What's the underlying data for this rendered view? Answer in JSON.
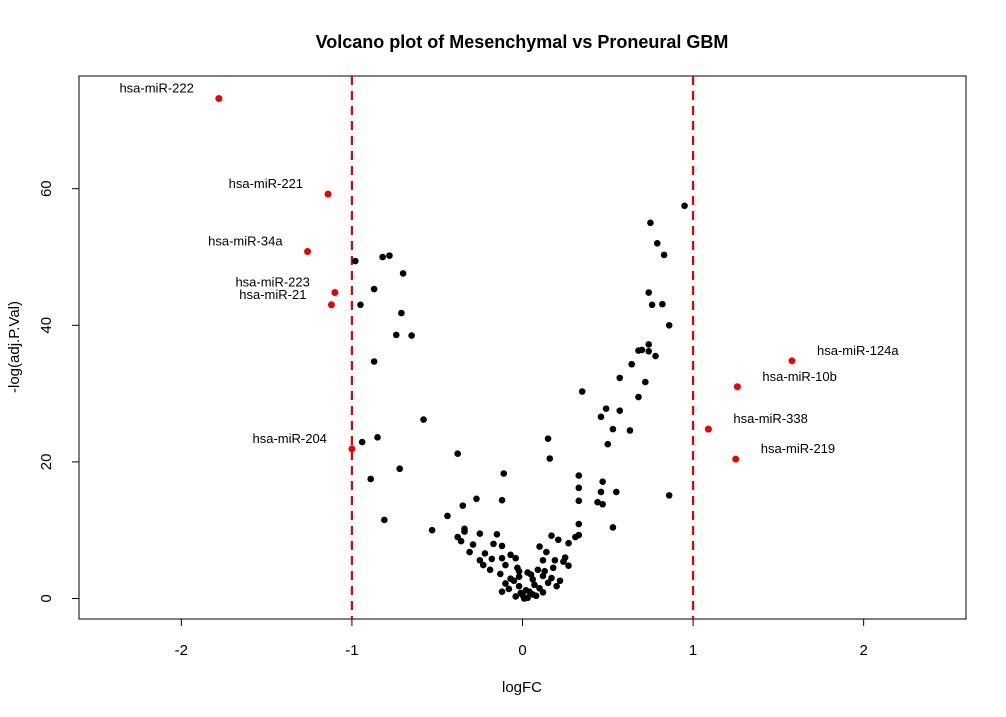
{
  "chart_data": {
    "type": "scatter",
    "title": "Volcano plot of Mesenchymal vs Proneural GBM",
    "xlabel": "logFC",
    "ylabel": "-log(adj.P.Val)",
    "xlim": [
      -2.6,
      2.6
    ],
    "ylim": [
      -3.0,
      76.5
    ],
    "xticks": [
      -2,
      -1,
      0,
      1,
      2
    ],
    "yticks": [
      0,
      20,
      40,
      60
    ],
    "grid": false,
    "thresholds": {
      "logFC": [
        -1,
        1
      ],
      "color": "#e00000",
      "style": "dashed"
    },
    "colors": {
      "significant": "#ee0000",
      "other": "#000000",
      "threshold": "#e00000"
    },
    "labeled_points": [
      {
        "label": "hsa-miR-222",
        "x": -1.78,
        "y": 73.2,
        "side": "left"
      },
      {
        "label": "hsa-miR-221",
        "x": -1.14,
        "y": 59.2,
        "side": "left"
      },
      {
        "label": "hsa-miR-34a",
        "x": -1.26,
        "y": 50.8,
        "side": "left"
      },
      {
        "label": "hsa-miR-223",
        "x": -1.1,
        "y": 44.8,
        "side": "left"
      },
      {
        "label": "hsa-miR-21",
        "x": -1.12,
        "y": 43.0,
        "side": "left"
      },
      {
        "label": "hsa-miR-204",
        "x": -1.0,
        "y": 21.9,
        "side": "left"
      },
      {
        "label": "hsa-miR-124a",
        "x": 1.58,
        "y": 34.8,
        "side": "right"
      },
      {
        "label": "hsa-miR-10b",
        "x": 1.26,
        "y": 31.0,
        "side": "right"
      },
      {
        "label": "hsa-miR-338",
        "x": 1.09,
        "y": 24.8,
        "side": "right"
      },
      {
        "label": "hsa-miR-219",
        "x": 1.25,
        "y": 20.4,
        "side": "right"
      }
    ],
    "points": [
      [
        0.95,
        57.5
      ],
      [
        0.75,
        55.0
      ],
      [
        0.79,
        52.0
      ],
      [
        0.83,
        50.3
      ],
      [
        0.74,
        44.8
      ],
      [
        0.76,
        43.0
      ],
      [
        0.82,
        43.1
      ],
      [
        0.86,
        40.0
      ],
      [
        0.74,
        37.2
      ],
      [
        0.7,
        36.4
      ],
      [
        0.74,
        36.2
      ],
      [
        0.78,
        35.5
      ],
      [
        0.68,
        36.3
      ],
      [
        0.64,
        34.3
      ],
      [
        0.72,
        31.7
      ],
      [
        0.68,
        29.5
      ],
      [
        0.57,
        32.3
      ],
      [
        0.46,
        26.6
      ],
      [
        0.49,
        27.8
      ],
      [
        0.57,
        27.5
      ],
      [
        0.53,
        24.8
      ],
      [
        0.63,
        24.6
      ],
      [
        0.5,
        22.6
      ],
      [
        0.86,
        15.1
      ],
      [
        0.35,
        30.3
      ],
      [
        0.33,
        18.0
      ],
      [
        0.33,
        16.2
      ],
      [
        0.33,
        14.3
      ],
      [
        0.47,
        17.1
      ],
      [
        0.46,
        15.6
      ],
      [
        0.44,
        14.1
      ],
      [
        0.47,
        13.8
      ],
      [
        0.55,
        15.6
      ],
      [
        0.53,
        10.4
      ],
      [
        0.33,
        10.9
      ],
      [
        0.33,
        9.3
      ],
      [
        0.31,
        9.0
      ],
      [
        0.15,
        23.4
      ],
      [
        0.16,
        20.5
      ],
      [
        0.27,
        8.1
      ],
      [
        -0.98,
        49.4
      ],
      [
        -0.82,
        50.0
      ],
      [
        -0.78,
        50.2
      ],
      [
        -0.7,
        47.6
      ],
      [
        -0.87,
        45.3
      ],
      [
        -0.95,
        43.0
      ],
      [
        -0.71,
        41.8
      ],
      [
        -0.74,
        38.6
      ],
      [
        -0.65,
        38.5
      ],
      [
        -0.87,
        34.7
      ],
      [
        -0.58,
        26.2
      ],
      [
        -0.85,
        23.6
      ],
      [
        -0.94,
        22.9
      ],
      [
        -0.72,
        19.0
      ],
      [
        -0.89,
        17.5
      ],
      [
        -0.81,
        11.5
      ],
      [
        -0.38,
        21.2
      ],
      [
        -0.11,
        18.3
      ],
      [
        -0.27,
        14.6
      ],
      [
        -0.12,
        14.4
      ],
      [
        -0.35,
        13.6
      ],
      [
        -0.44,
        12.1
      ],
      [
        -0.53,
        10.0
      ],
      [
        -0.34,
        10.2
      ],
      [
        -0.34,
        9.8
      ],
      [
        -0.38,
        9.0
      ],
      [
        -0.25,
        9.5
      ],
      [
        -0.15,
        9.4
      ],
      [
        -0.36,
        8.4
      ],
      [
        -0.29,
        7.9
      ],
      [
        -0.17,
        8.0
      ],
      [
        -0.12,
        7.7
      ],
      [
        -0.31,
        6.8
      ],
      [
        -0.22,
        6.6
      ],
      [
        -0.18,
        5.8
      ],
      [
        -0.25,
        5.6
      ],
      [
        -0.12,
        5.9
      ],
      [
        -0.04,
        5.9
      ],
      [
        -0.07,
        6.4
      ],
      [
        -0.23,
        4.9
      ],
      [
        -0.1,
        4.9
      ],
      [
        -0.03,
        4.5
      ],
      [
        -0.19,
        4.2
      ],
      [
        -0.02,
        3.2
      ],
      [
        0.05,
        3.5
      ],
      [
        0.06,
        2.8
      ],
      [
        0.12,
        3.3
      ],
      [
        0.17,
        3.0
      ],
      [
        0.18,
        4.5
      ],
      [
        0.12,
        5.6
      ],
      [
        0.19,
        5.6
      ],
      [
        0.24,
        5.4
      ],
      [
        0.27,
        4.8
      ],
      [
        0.25,
        6.0
      ],
      [
        0.21,
        8.6
      ],
      [
        0.17,
        9.2
      ],
      [
        0.1,
        7.6
      ],
      [
        0.14,
        6.8
      ],
      [
        0.02,
        1.2
      ],
      [
        0.0,
        0.5
      ],
      [
        -0.02,
        1.8
      ],
      [
        0.04,
        1.0
      ],
      [
        0.07,
        2.0
      ],
      [
        0.1,
        1.5
      ],
      [
        0.12,
        0.9
      ],
      [
        0.15,
        2.3
      ],
      [
        0.22,
        2.6
      ],
      [
        0.2,
        1.8
      ],
      [
        -0.05,
        2.6
      ],
      [
        -0.08,
        1.4
      ],
      [
        -0.1,
        2.2
      ],
      [
        -0.12,
        1.0
      ],
      [
        -0.04,
        0.3
      ],
      [
        0.03,
        0.1
      ],
      [
        0.06,
        0.6
      ],
      [
        -0.13,
        3.6
      ],
      [
        -0.02,
        4.0
      ],
      [
        0.09,
        4.2
      ],
      [
        0.03,
        3.8
      ],
      [
        0.13,
        4.0
      ],
      [
        -0.07,
        2.9
      ],
      [
        0.01,
        0.0
      ],
      [
        -0.01,
        0.8
      ],
      [
        0.08,
        0.4
      ]
    ]
  }
}
